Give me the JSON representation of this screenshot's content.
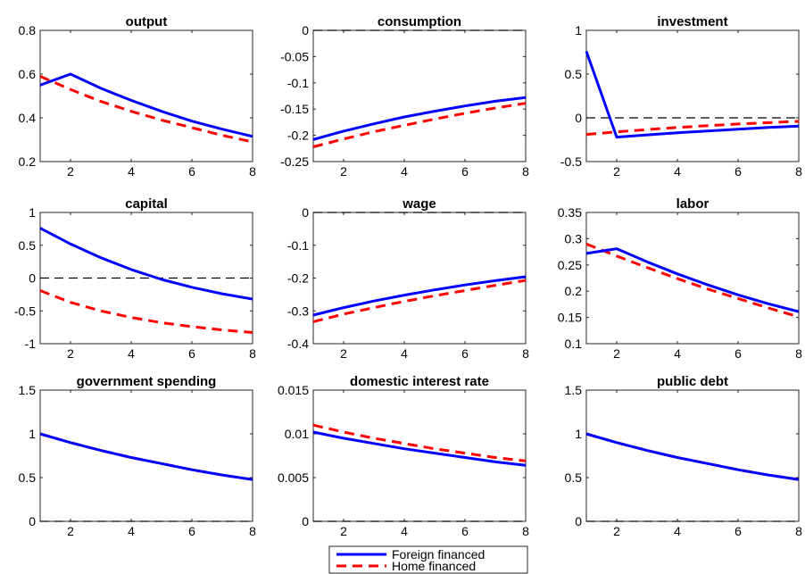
{
  "figure": {
    "colors": {
      "foreign": "#0000ff",
      "home": "#ff0000",
      "zero": "#000000",
      "axis": "#262626"
    }
  },
  "legend": {
    "entries": [
      {
        "label": "Foreign financed",
        "style": "solid",
        "color": "#0000ff"
      },
      {
        "label": "Home financed",
        "style": "dashed",
        "color": "#ff0000"
      }
    ]
  },
  "chart_data": [
    {
      "type": "line",
      "title": "output",
      "x": [
        1,
        2,
        3,
        4,
        5,
        6,
        7,
        8
      ],
      "xlim": [
        1,
        8
      ],
      "xticks": [
        "2",
        "4",
        "6",
        "8"
      ],
      "ylim": [
        0.2,
        0.8
      ],
      "yticks": [
        "0.2",
        "0.4",
        "0.6",
        "0.8"
      ],
      "zero_line": false,
      "series": [
        {
          "name": "Foreign financed",
          "values": [
            0.55,
            0.6,
            0.535,
            0.48,
            0.43,
            0.385,
            0.348,
            0.315
          ]
        },
        {
          "name": "Home financed",
          "values": [
            0.59,
            0.53,
            0.475,
            0.43,
            0.39,
            0.355,
            0.32,
            0.29
          ]
        }
      ]
    },
    {
      "type": "line",
      "title": "consumption",
      "x": [
        1,
        2,
        3,
        4,
        5,
        6,
        7,
        8
      ],
      "xlim": [
        1,
        8
      ],
      "xticks": [
        "2",
        "4",
        "6",
        "8"
      ],
      "ylim": [
        -0.25,
        0
      ],
      "yticks": [
        "-0.25",
        "-0.2",
        "-0.15",
        "-0.1",
        "-0.05",
        "0"
      ],
      "zero_line": true,
      "series": [
        {
          "name": "Foreign financed",
          "values": [
            -0.208,
            -0.192,
            -0.178,
            -0.165,
            -0.154,
            -0.144,
            -0.135,
            -0.128
          ]
        },
        {
          "name": "Home financed",
          "values": [
            -0.222,
            -0.207,
            -0.193,
            -0.181,
            -0.169,
            -0.158,
            -0.148,
            -0.139
          ]
        }
      ]
    },
    {
      "type": "line",
      "title": "investment",
      "x": [
        1,
        2,
        3,
        4,
        5,
        6,
        7,
        8
      ],
      "xlim": [
        1,
        8
      ],
      "xticks": [
        "2",
        "4",
        "6",
        "8"
      ],
      "ylim": [
        -0.5,
        1
      ],
      "yticks": [
        "-0.5",
        "0",
        "0.5",
        "1"
      ],
      "zero_line": true,
      "series": [
        {
          "name": "Foreign financed",
          "values": [
            0.76,
            -0.22,
            -0.195,
            -0.17,
            -0.15,
            -0.13,
            -0.11,
            -0.095
          ]
        },
        {
          "name": "Home financed",
          "values": [
            -0.19,
            -0.16,
            -0.135,
            -0.11,
            -0.09,
            -0.07,
            -0.055,
            -0.04
          ]
        }
      ]
    },
    {
      "type": "line",
      "title": "capital",
      "x": [
        1,
        2,
        3,
        4,
        5,
        6,
        7,
        8
      ],
      "xlim": [
        1,
        8
      ],
      "xticks": [
        "2",
        "4",
        "6",
        "8"
      ],
      "ylim": [
        -1,
        1
      ],
      "yticks": [
        "-1",
        "-0.5",
        "0",
        "0.5",
        "1"
      ],
      "zero_line": true,
      "series": [
        {
          "name": "Foreign financed",
          "values": [
            0.76,
            0.52,
            0.31,
            0.13,
            -0.02,
            -0.14,
            -0.24,
            -0.32
          ]
        },
        {
          "name": "Home financed",
          "values": [
            -0.19,
            -0.37,
            -0.5,
            -0.6,
            -0.68,
            -0.74,
            -0.79,
            -0.83
          ]
        }
      ]
    },
    {
      "type": "line",
      "title": "wage",
      "x": [
        1,
        2,
        3,
        4,
        5,
        6,
        7,
        8
      ],
      "xlim": [
        1,
        8
      ],
      "xticks": [
        "2",
        "4",
        "6",
        "8"
      ],
      "ylim": [
        -0.4,
        0
      ],
      "yticks": [
        "-0.4",
        "-0.3",
        "-0.2",
        "-0.1",
        "0"
      ],
      "zero_line": true,
      "series": [
        {
          "name": "Foreign financed",
          "values": [
            -0.313,
            -0.29,
            -0.27,
            -0.252,
            -0.236,
            -0.221,
            -0.208,
            -0.196
          ]
        },
        {
          "name": "Home financed",
          "values": [
            -0.333,
            -0.31,
            -0.29,
            -0.271,
            -0.254,
            -0.238,
            -0.222,
            -0.207
          ]
        }
      ]
    },
    {
      "type": "line",
      "title": "labor",
      "x": [
        1,
        2,
        3,
        4,
        5,
        6,
        7,
        8
      ],
      "xlim": [
        1,
        8
      ],
      "xticks": [
        "2",
        "4",
        "6",
        "8"
      ],
      "ylim": [
        0.1,
        0.35
      ],
      "yticks": [
        "0.1",
        "0.15",
        "0.2",
        "0.25",
        "0.3",
        "0.35"
      ],
      "zero_line": false,
      "series": [
        {
          "name": "Foreign financed",
          "values": [
            0.272,
            0.281,
            0.256,
            0.233,
            0.212,
            0.193,
            0.176,
            0.161
          ]
        },
        {
          "name": "Home financed",
          "values": [
            0.29,
            0.267,
            0.245,
            0.224,
            0.204,
            0.186,
            0.168,
            0.151
          ]
        }
      ]
    },
    {
      "type": "line",
      "title": "government spending",
      "x": [
        1,
        2,
        3,
        4,
        5,
        6,
        7,
        8
      ],
      "xlim": [
        1,
        8
      ],
      "xticks": [
        "2",
        "4",
        "6",
        "8"
      ],
      "ylim": [
        0,
        1.5
      ],
      "yticks": [
        "0",
        "0.5",
        "1",
        "1.5"
      ],
      "zero_line": true,
      "series": [
        {
          "name": "Foreign financed",
          "values": [
            1.0,
            0.9,
            0.81,
            0.73,
            0.66,
            0.59,
            0.53,
            0.478
          ]
        },
        {
          "name": "Home financed",
          "values": [
            1.0,
            0.9,
            0.81,
            0.73,
            0.66,
            0.59,
            0.53,
            0.478
          ]
        }
      ]
    },
    {
      "type": "line",
      "title": "domestic interest rate",
      "x": [
        1,
        2,
        3,
        4,
        5,
        6,
        7,
        8
      ],
      "xlim": [
        1,
        8
      ],
      "xticks": [
        "2",
        "4",
        "6",
        "8"
      ],
      "ylim": [
        0,
        0.015
      ],
      "yticks": [
        "0",
        "0.005",
        "0.01",
        "0.015"
      ],
      "zero_line": true,
      "series": [
        {
          "name": "Foreign financed",
          "values": [
            0.0102,
            0.0095,
            0.0089,
            0.0083,
            0.0078,
            0.0073,
            0.0068,
            0.0064
          ]
        },
        {
          "name": "Home financed",
          "values": [
            0.011,
            0.0102,
            0.0095,
            0.0089,
            0.0083,
            0.0078,
            0.0073,
            0.0069
          ]
        }
      ]
    },
    {
      "type": "line",
      "title": "public debt",
      "x": [
        1,
        2,
        3,
        4,
        5,
        6,
        7,
        8
      ],
      "xlim": [
        1,
        8
      ],
      "xticks": [
        "2",
        "4",
        "6",
        "8"
      ],
      "ylim": [
        0,
        1.5
      ],
      "yticks": [
        "0",
        "0.5",
        "1",
        "1.5"
      ],
      "zero_line": true,
      "series": [
        {
          "name": "Foreign financed",
          "values": [
            1.0,
            0.9,
            0.81,
            0.73,
            0.66,
            0.59,
            0.53,
            0.478
          ]
        },
        {
          "name": "Home financed",
          "values": [
            1.0,
            0.9,
            0.81,
            0.73,
            0.66,
            0.59,
            0.53,
            0.478
          ]
        }
      ]
    }
  ]
}
